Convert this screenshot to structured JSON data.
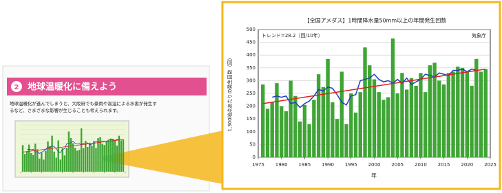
{
  "document": {
    "section_title": "地球温暖化に備えよう",
    "section_number": "2",
    "body": [
      "地球温暖化が進んでしまうと、大阪府でも豪雨や高温による水害が発生す",
      "るなど、さまざまな影響が生じることも考えられます。"
    ]
  },
  "chart_data": {
    "type": "bar",
    "title": "【全国アメダス】1時間降水量50mm以上の年間発生回数",
    "x_label": "年",
    "y_label": "1,300地点あたりの発生回数（回）",
    "annotations": [
      "トレンド=28.2（回/10年）",
      "気象庁"
    ],
    "x": [
      1976,
      1977,
      1978,
      1979,
      1980,
      1981,
      1982,
      1983,
      1984,
      1985,
      1986,
      1987,
      1988,
      1989,
      1990,
      1991,
      1992,
      1993,
      1994,
      1995,
      1996,
      1997,
      1998,
      1999,
      2000,
      2001,
      2002,
      2003,
      2004,
      2005,
      2006,
      2007,
      2008,
      2009,
      2010,
      2011,
      2012,
      2013,
      2014,
      2015,
      2016,
      2017,
      2018,
      2019,
      2020,
      2021,
      2022,
      2023,
      2024
    ],
    "values": [
      285,
      190,
      215,
      290,
      200,
      180,
      300,
      240,
      140,
      205,
      130,
      225,
      325,
      275,
      385,
      215,
      150,
      335,
      130,
      250,
      175,
      255,
      430,
      360,
      305,
      255,
      225,
      235,
      465,
      250,
      330,
      265,
      310,
      280,
      330,
      255,
      360,
      370,
      300,
      285,
      330,
      335,
      355,
      350,
      335,
      280,
      385,
      335,
      345
    ],
    "color": "#3fa535",
    "moving_average": {
      "color": "#1f3fbf",
      "x": [
        1978,
        1979,
        1980,
        1981,
        1982,
        1983,
        1984,
        1985,
        1986,
        1987,
        1988,
        1989,
        1990,
        1991,
        1992,
        1993,
        1994,
        1995,
        1996,
        1997,
        1998,
        1999,
        2000,
        2001,
        2002,
        2003,
        2004,
        2005,
        2006,
        2007,
        2008,
        2009,
        2010,
        2011,
        2012,
        2013,
        2014,
        2015,
        2016,
        2017,
        2018,
        2019,
        2020,
        2021,
        2022
      ],
      "values": [
        235,
        240,
        235,
        240,
        210,
        215,
        195,
        210,
        220,
        240,
        265,
        260,
        275,
        270,
        245,
        215,
        205,
        240,
        245,
        300,
        305,
        310,
        325,
        305,
        295,
        300,
        290,
        305,
        290,
        310,
        285,
        295,
        305,
        325,
        320,
        315,
        330,
        325,
        320,
        340,
        340,
        345,
        335,
        345,
        340
      ]
    },
    "trend": {
      "color": "#e02020",
      "x": [
        1976,
        2024
      ],
      "values": [
        210,
        345
      ]
    },
    "xlim": [
      1975,
      2025
    ],
    "xticks": [
      1975,
      1980,
      1985,
      1990,
      1995,
      2000,
      2005,
      2010,
      2015,
      2020,
      2025
    ],
    "ylim": [
      0,
      500
    ],
    "yticks": [
      0,
      50,
      100,
      150,
      200,
      250,
      300,
      350,
      400,
      450,
      500
    ],
    "grid": true
  }
}
